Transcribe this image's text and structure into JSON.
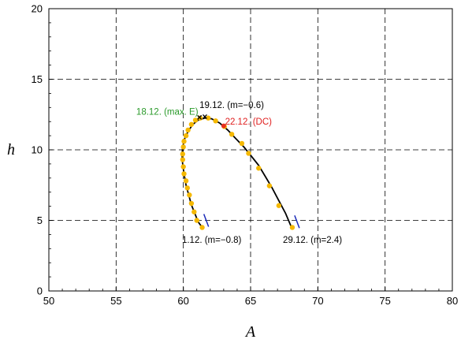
{
  "chart_data": {
    "type": "scatter",
    "title": "",
    "xlabel": "A",
    "ylabel": "h",
    "xlim": [
      50,
      80
    ],
    "ylim": [
      0,
      20
    ],
    "x_ticks": [
      50,
      55,
      60,
      65,
      70,
      75,
      80
    ],
    "y_ticks": [
      0,
      5,
      10,
      15,
      20
    ],
    "grid": true,
    "grid_style": "dashed",
    "colors": {
      "points": "#f5b800",
      "curve": "#000000",
      "green_label": "#2a9a2a",
      "red_label": "#e02020",
      "black_label": "#000000",
      "end_mark": "#1a2ab8",
      "red_point": "#e83020"
    },
    "series": [
      {
        "type": "line",
        "points": [
          [
            61.4,
            4.5
          ],
          [
            61.1,
            4.9
          ],
          [
            60.85,
            5.5
          ],
          [
            60.6,
            6.1
          ],
          [
            60.4,
            6.8
          ],
          [
            60.2,
            7.5
          ],
          [
            60.05,
            8.3
          ],
          [
            59.95,
            9.0
          ],
          [
            59.9,
            9.6
          ],
          [
            59.95,
            10.2
          ],
          [
            60.1,
            10.8
          ],
          [
            60.35,
            11.3
          ],
          [
            60.7,
            11.8
          ],
          [
            61.1,
            12.1
          ],
          [
            61.6,
            12.25
          ],
          [
            62.1,
            12.2
          ],
          [
            62.7,
            11.9
          ],
          [
            63.3,
            11.4
          ],
          [
            63.9,
            10.8
          ],
          [
            64.5,
            10.2
          ],
          [
            65.1,
            9.5
          ],
          [
            65.6,
            8.9
          ],
          [
            66.1,
            8.1
          ],
          [
            66.6,
            7.3
          ],
          [
            67.1,
            6.4
          ],
          [
            67.6,
            5.5
          ],
          [
            68.0,
            4.6
          ]
        ]
      },
      {
        "type": "scatter",
        "points": [
          [
            61.4,
            4.5
          ],
          [
            61.0,
            5.0
          ],
          [
            60.8,
            5.6
          ],
          [
            60.6,
            6.2
          ],
          [
            60.45,
            6.8
          ],
          [
            60.3,
            7.3
          ],
          [
            60.2,
            7.8
          ],
          [
            60.05,
            8.3
          ],
          [
            60.0,
            8.8
          ],
          [
            59.95,
            9.3
          ],
          [
            59.95,
            9.7
          ],
          [
            60.0,
            10.2
          ],
          [
            60.05,
            10.6
          ],
          [
            60.2,
            11.0
          ],
          [
            60.35,
            11.4
          ],
          [
            60.6,
            11.8
          ],
          [
            60.9,
            12.1
          ],
          [
            61.25,
            12.25
          ],
          [
            61.85,
            12.25
          ],
          [
            62.4,
            12.05
          ],
          [
            63.05,
            11.65
          ],
          [
            63.6,
            11.1
          ],
          [
            64.35,
            10.45
          ],
          [
            64.85,
            9.75
          ],
          [
            65.6,
            8.7
          ],
          [
            66.4,
            7.45
          ],
          [
            67.1,
            6.05
          ],
          [
            68.1,
            4.5
          ]
        ]
      }
    ],
    "special_points": [
      {
        "label": "max_E",
        "x": 61.2,
        "y": 12.3,
        "marker": "x"
      },
      {
        "label": "m_-0.6",
        "x": 61.6,
        "y": 12.35,
        "marker": "x"
      },
      {
        "label": "DC",
        "x": 63.0,
        "y": 11.7,
        "marker": "dot"
      }
    ],
    "end_marks": [
      {
        "x": 61.7,
        "y": 5.0
      },
      {
        "x": 68.45,
        "y": 4.9
      }
    ],
    "annotations": [
      {
        "text": "18.12. (max. E)",
        "x": 56.5,
        "y": 12.5,
        "color": "green"
      },
      {
        "text": "19.12. (m=−0.6)",
        "x": 61.2,
        "y": 12.95,
        "color": "black"
      },
      {
        "text": "22.12. (DC)",
        "x": 63.1,
        "y": 11.8,
        "color": "red"
      },
      {
        "text": "1.12. (m=−0.8)",
        "x": 59.9,
        "y": 3.4,
        "color": "black"
      },
      {
        "text": "29.12. (m=2.4)",
        "x": 67.4,
        "y": 3.4,
        "color": "black"
      }
    ]
  }
}
